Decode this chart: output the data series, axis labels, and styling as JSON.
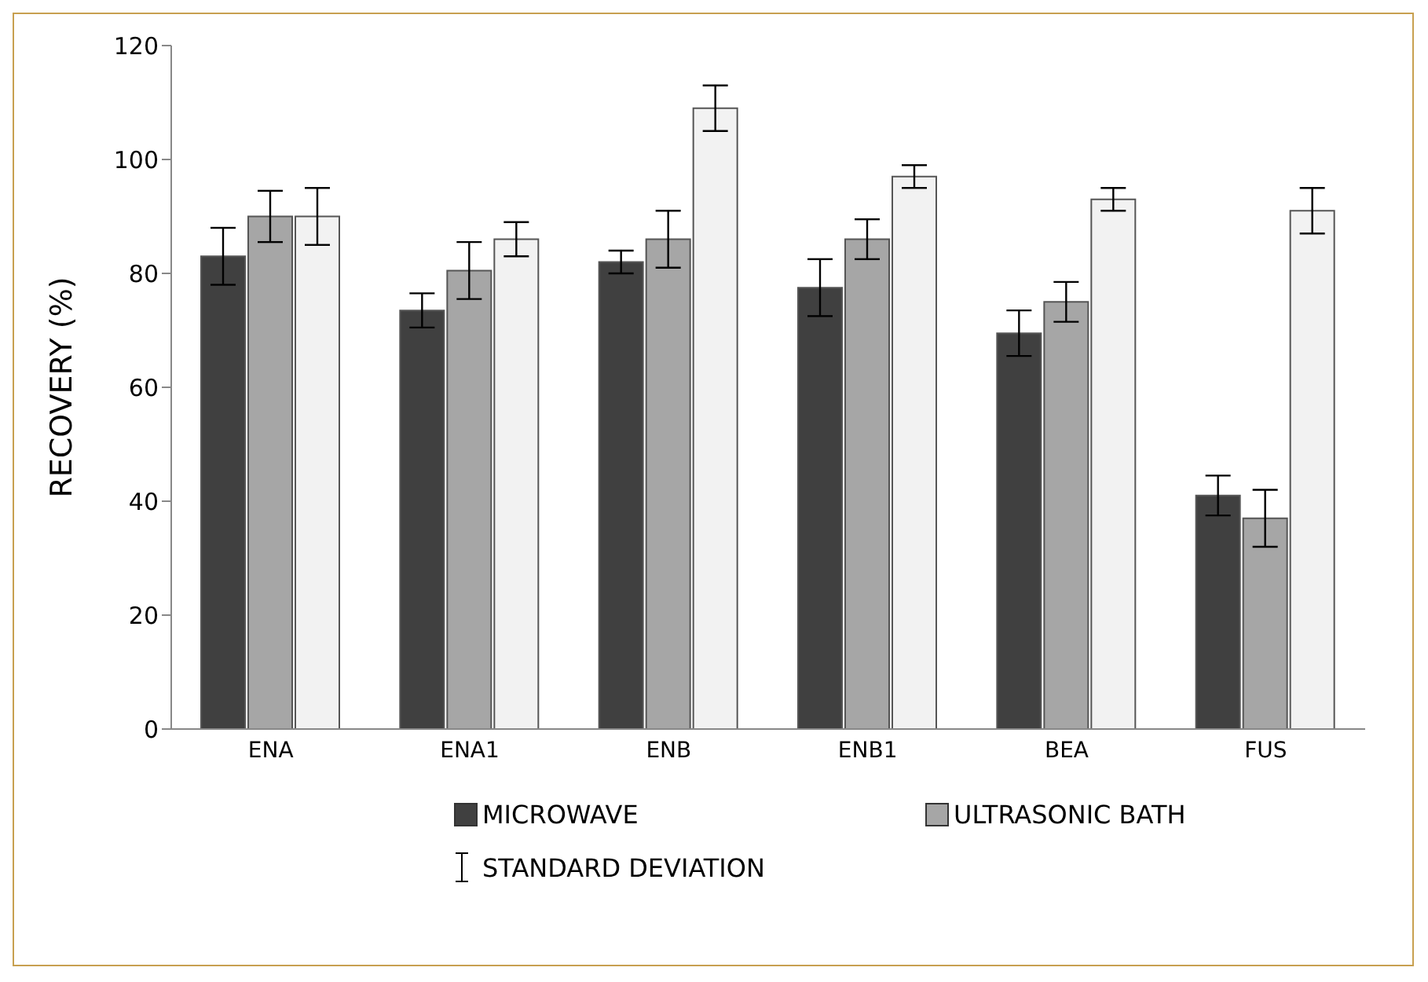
{
  "chart_data": {
    "type": "bar",
    "ylabel": "RECOVERY (%)",
    "categories": [
      "ENA",
      "ENA1",
      "ENB",
      "ENB1",
      "BEA",
      "FUS"
    ],
    "series": [
      {
        "name": "MICROWAVE",
        "color": "#404040",
        "values": [
          83,
          73.5,
          82,
          77.5,
          69.5,
          41
        ],
        "errors": [
          5,
          3,
          2,
          5,
          4,
          3.5
        ]
      },
      {
        "name": "ULTRASONIC BATH",
        "color": "#a6a6a6",
        "values": [
          90,
          80.5,
          86,
          86,
          75,
          37
        ],
        "errors": [
          4.5,
          5,
          5,
          3.5,
          3.5,
          5
        ]
      },
      {
        "color": "#f2f2f2",
        "values": [
          90,
          86,
          109,
          97,
          93,
          91
        ],
        "errors": [
          5,
          3,
          4,
          2,
          2,
          4
        ]
      }
    ],
    "ylim": [
      0,
      120
    ],
    "yticks": [
      0,
      20,
      40,
      60,
      80,
      100,
      120
    ],
    "legend": "bottom",
    "annotations": [
      "STANDARD DEVIATION"
    ]
  }
}
